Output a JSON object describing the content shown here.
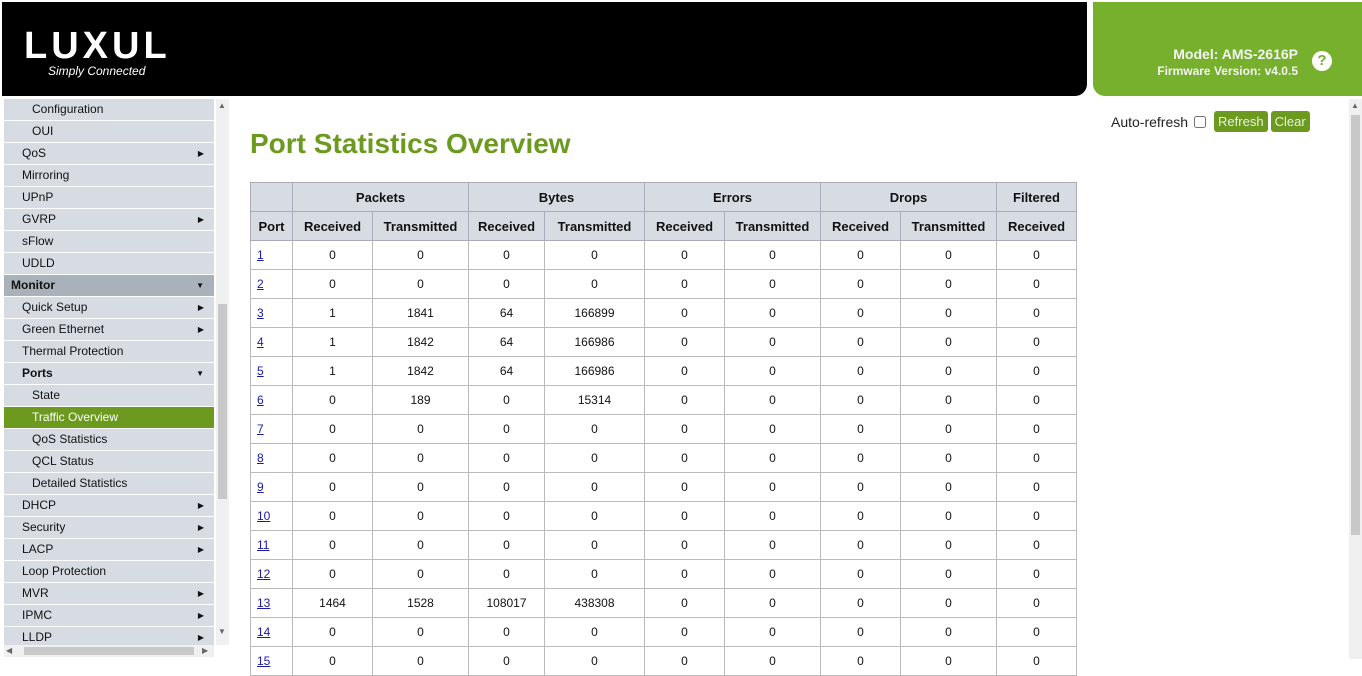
{
  "header": {
    "logo": "LUXUL",
    "tagline": "Simply Connected",
    "model": "Model: AMS-2616P",
    "firmware": "Firmware Version: v4.0.5"
  },
  "sidebar": {
    "items": [
      {
        "label": "Configuration",
        "level": "sub"
      },
      {
        "label": "OUI",
        "level": "sub"
      },
      {
        "label": "QoS",
        "arrow": true
      },
      {
        "label": "Mirroring"
      },
      {
        "label": "UPnP"
      },
      {
        "label": "GVRP",
        "arrow": true
      },
      {
        "label": "sFlow"
      },
      {
        "label": "UDLD"
      },
      {
        "label": "Monitor",
        "level": "hd",
        "down": true
      },
      {
        "label": "Quick Setup",
        "arrow": true
      },
      {
        "label": "Green Ethernet",
        "arrow": true
      },
      {
        "label": "Thermal Protection"
      },
      {
        "label": "Ports",
        "bold": true,
        "down": true
      },
      {
        "label": "State",
        "level": "sub"
      },
      {
        "label": "Traffic Overview",
        "level": "sub",
        "active": true
      },
      {
        "label": "QoS Statistics",
        "level": "sub"
      },
      {
        "label": "QCL Status",
        "level": "sub"
      },
      {
        "label": "Detailed Statistics",
        "level": "sub"
      },
      {
        "label": "DHCP",
        "arrow": true
      },
      {
        "label": "Security",
        "arrow": true
      },
      {
        "label": "LACP",
        "arrow": true
      },
      {
        "label": "Loop Protection"
      },
      {
        "label": "MVR",
        "arrow": true
      },
      {
        "label": "IPMC",
        "arrow": true
      },
      {
        "label": "LLDP",
        "arrow": true
      }
    ]
  },
  "main": {
    "title": "Port Statistics Overview",
    "auto_refresh_label": "Auto-refresh",
    "refresh_label": "Refresh",
    "clear_label": "Clear",
    "groups": [
      {
        "label": "Packets",
        "span": 2
      },
      {
        "label": "Bytes",
        "span": 2
      },
      {
        "label": "Errors",
        "span": 2
      },
      {
        "label": "Drops",
        "span": 2
      },
      {
        "label": "Filtered",
        "span": 1
      }
    ],
    "port_header": "Port",
    "subheaders": [
      "Received",
      "Transmitted",
      "Received",
      "Transmitted",
      "Received",
      "Transmitted",
      "Received",
      "Transmitted",
      "Received"
    ],
    "rows": [
      [
        "1",
        "0",
        "0",
        "0",
        "0",
        "0",
        "0",
        "0",
        "0",
        "0"
      ],
      [
        "2",
        "0",
        "0",
        "0",
        "0",
        "0",
        "0",
        "0",
        "0",
        "0"
      ],
      [
        "3",
        "1",
        "1841",
        "64",
        "166899",
        "0",
        "0",
        "0",
        "0",
        "0"
      ],
      [
        "4",
        "1",
        "1842",
        "64",
        "166986",
        "0",
        "0",
        "0",
        "0",
        "0"
      ],
      [
        "5",
        "1",
        "1842",
        "64",
        "166986",
        "0",
        "0",
        "0",
        "0",
        "0"
      ],
      [
        "6",
        "0",
        "189",
        "0",
        "15314",
        "0",
        "0",
        "0",
        "0",
        "0"
      ],
      [
        "7",
        "0",
        "0",
        "0",
        "0",
        "0",
        "0",
        "0",
        "0",
        "0"
      ],
      [
        "8",
        "0",
        "0",
        "0",
        "0",
        "0",
        "0",
        "0",
        "0",
        "0"
      ],
      [
        "9",
        "0",
        "0",
        "0",
        "0",
        "0",
        "0",
        "0",
        "0",
        "0"
      ],
      [
        "10",
        "0",
        "0",
        "0",
        "0",
        "0",
        "0",
        "0",
        "0",
        "0"
      ],
      [
        "11",
        "0",
        "0",
        "0",
        "0",
        "0",
        "0",
        "0",
        "0",
        "0"
      ],
      [
        "12",
        "0",
        "0",
        "0",
        "0",
        "0",
        "0",
        "0",
        "0",
        "0"
      ],
      [
        "13",
        "1464",
        "1528",
        "108017",
        "438308",
        "0",
        "0",
        "0",
        "0",
        "0"
      ],
      [
        "14",
        "0",
        "0",
        "0",
        "0",
        "0",
        "0",
        "0",
        "0",
        "0"
      ],
      [
        "15",
        "0",
        "0",
        "0",
        "0",
        "0",
        "0",
        "0",
        "0",
        "0"
      ]
    ]
  },
  "colors": {
    "accent": "#6b9a1e",
    "brand_green": "#76b02d",
    "header_bg": "#000000"
  }
}
